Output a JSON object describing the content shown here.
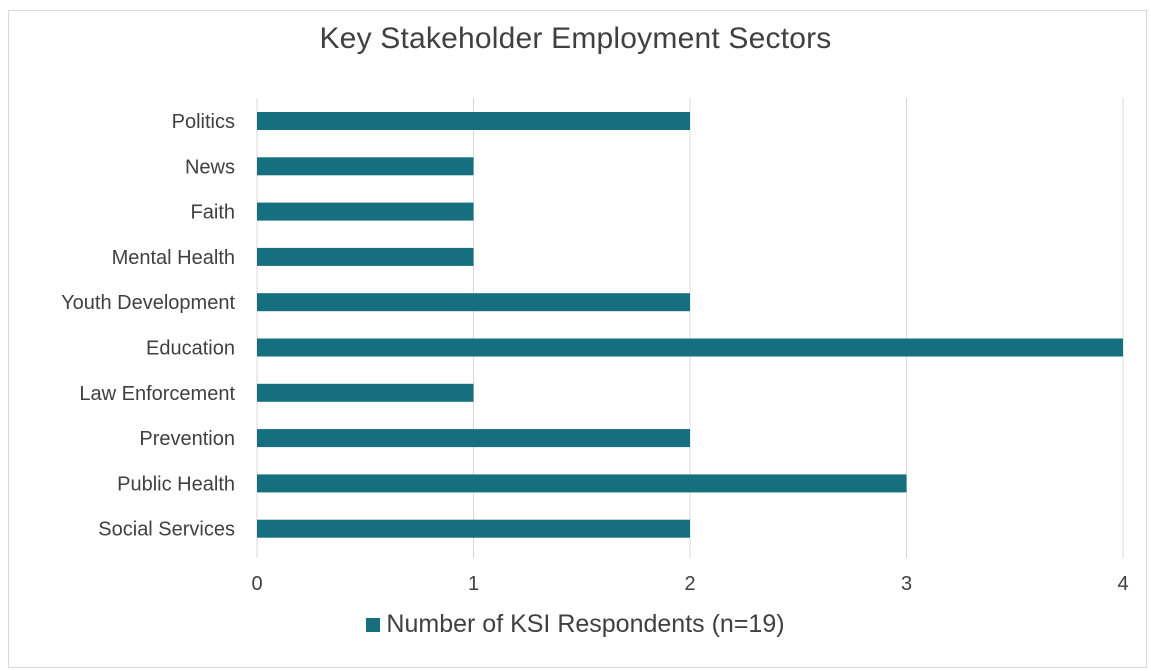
{
  "colors": {
    "bar": "#156f7f",
    "grid": "#d9d9d9",
    "text": "#404040"
  },
  "legend": {
    "label": "Number of KSI Respondents (n=19)"
  },
  "chart_data": {
    "type": "bar",
    "orientation": "horizontal",
    "title": "Key Stakeholder Employment Sectors",
    "xlabel": "",
    "ylabel": "",
    "categories": [
      "Politics",
      "News",
      "Faith",
      "Mental Health",
      "Youth Development",
      "Education",
      "Law Enforcement",
      "Prevention",
      "Public Health",
      "Social Services"
    ],
    "series": [
      {
        "name": "Number of KSI Respondents (n=19)",
        "values": [
          2,
          1,
          1,
          1,
          2,
          4,
          1,
          2,
          3,
          2
        ]
      }
    ],
    "xlim": [
      0,
      4
    ],
    "xticks": [
      "0",
      "1",
      "2",
      "3",
      "4"
    ],
    "grid": true,
    "legend_position": "bottom"
  }
}
